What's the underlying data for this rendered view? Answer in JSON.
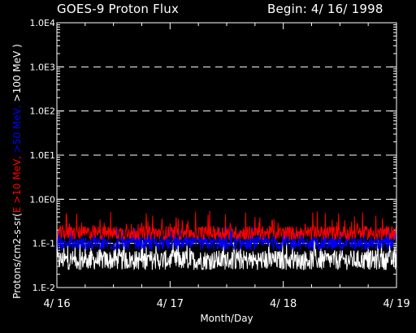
{
  "header": {
    "title": "GOES-9 Proton Flux",
    "begin": "Begin: 4/ 16/ 1998"
  },
  "colors": {
    "background": "#000000",
    "frame": "#ffffff",
    "grid": "#ffffff",
    "series_gt10": "#ff0000",
    "series_gt50": "#0000ff",
    "series_gt100": "#ffffff"
  },
  "chart_data": {
    "type": "line",
    "title": "GOES-9 Proton Flux",
    "subtitle": "Begin: 4/ 16/ 1998",
    "xlabel": "Month/Day",
    "ylabel_parts": [
      {
        "text": "Protons/cm2-s-sr(",
        "color": "#ffffff"
      },
      {
        "text": "E >10 MeV, ",
        "color": "#ff0000"
      },
      {
        "text": ">50 MeV, ",
        "color": "#0000ff"
      },
      {
        "text": ">100 MeV )",
        "color": "#ffffff"
      }
    ],
    "y_scale": "log",
    "ylim": [
      0.01,
      10000
    ],
    "y_ticks": [
      {
        "value": 0.01,
        "label": "1.E-2"
      },
      {
        "value": 0.1,
        "label": "1.E-1"
      },
      {
        "value": 1,
        "label": "1.0E0"
      },
      {
        "value": 10,
        "label": "1.0E1"
      },
      {
        "value": 100,
        "label": "1.0E2"
      },
      {
        "value": 1000,
        "label": "1.0E3"
      },
      {
        "value": 10000,
        "label": "1.0E4"
      }
    ],
    "gridlines": [
      0.1,
      1,
      10,
      100,
      1000
    ],
    "grid_style": "dashed",
    "xlim": [
      "1998-04-16",
      "1998-04-19"
    ],
    "x_ticks": [
      {
        "value": "1998-04-16",
        "label": "4/ 16"
      },
      {
        "value": "1998-04-17",
        "label": "4/ 17"
      },
      {
        "value": "1998-04-18",
        "label": "4/ 18"
      },
      {
        "value": "1998-04-19",
        "label": "4/ 19"
      }
    ],
    "series": [
      {
        "name": ">10 MeV",
        "color": "#ff0000",
        "typical_range": [
          0.12,
          0.25
        ],
        "peak": 0.55
      },
      {
        "name": ">50 MeV",
        "color": "#0000ff",
        "typical_range": [
          0.07,
          0.14
        ],
        "peak": 0.25
      },
      {
        "name": ">100 MeV",
        "color": "#ffffff",
        "typical_range": [
          0.025,
          0.07
        ],
        "peak": 0.12
      }
    ]
  }
}
